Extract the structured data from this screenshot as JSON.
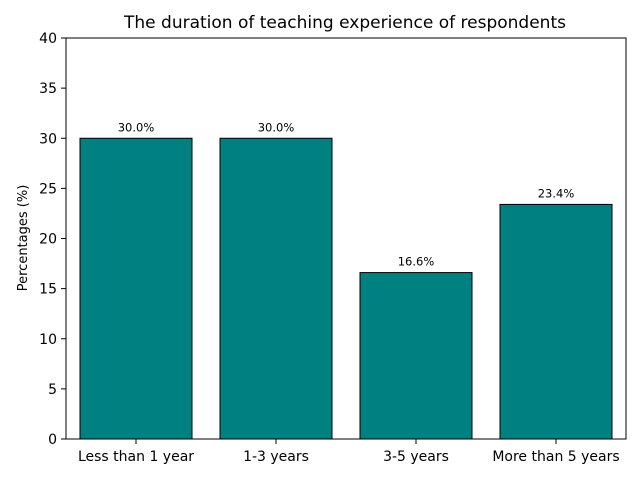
{
  "chart_data": {
    "type": "bar",
    "title": "The duration of teaching experience of respondents",
    "xlabel": "",
    "ylabel": "Percentages (%)",
    "categories": [
      "Less than 1 year",
      "1-3 years",
      "3-5 years",
      "More than 5 years"
    ],
    "values": [
      30.0,
      30.0,
      16.6,
      23.4
    ],
    "data_labels": [
      "30.0%",
      "30.0%",
      "16.6%",
      "23.4%"
    ],
    "ylim": [
      0,
      40
    ],
    "yticks": [
      0,
      5,
      10,
      15,
      20,
      25,
      30,
      35,
      40
    ],
    "ytick_labels": [
      "0",
      "5",
      "10",
      "15",
      "20",
      "25",
      "30",
      "35",
      "40"
    ],
    "bar_color": "#008080",
    "edge_color": "#000000",
    "grid": false,
    "legend": "none"
  }
}
